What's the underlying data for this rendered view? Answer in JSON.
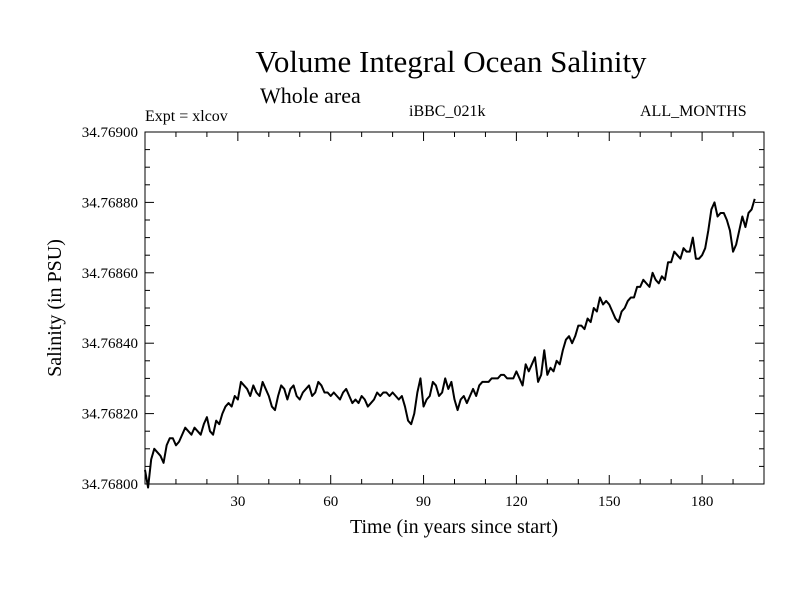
{
  "chart_data": {
    "type": "line",
    "title": "Volume Integral Ocean Salinity",
    "subtitle": "Whole area",
    "experiment": "Expt = xlcov",
    "run_id": "iBBC_021k",
    "period": "ALL_MONTHS",
    "xlabel": "Time (in years since start)",
    "ylabel": "Salinity (in PSU)",
    "xlim": [
      0,
      200
    ],
    "ylim": [
      34.768,
      34.769
    ],
    "x_ticks": [
      30,
      60,
      90,
      120,
      150,
      180
    ],
    "x_tick_labels": [
      "30",
      "60",
      "90",
      "120",
      "150",
      "180"
    ],
    "y_ticks": [
      34.768,
      34.7682,
      34.7684,
      34.7686,
      34.7688,
      34.769
    ],
    "y_tick_labels": [
      "34.76800",
      "34.76820",
      "34.76840",
      "34.76860",
      "34.76880",
      "34.76900"
    ],
    "grid": false,
    "series": [
      {
        "name": "salinity",
        "x_start": 0,
        "x_step": 1,
        "values": [
          34.76804,
          34.76799,
          34.76807,
          34.7681,
          34.76809,
          34.76808,
          34.76806,
          34.76811,
          34.76813,
          34.76813,
          34.76811,
          34.76812,
          34.76814,
          34.76816,
          34.76815,
          34.76814,
          34.76816,
          34.76815,
          34.76814,
          34.76817,
          34.76819,
          34.76815,
          34.76814,
          34.76818,
          34.76817,
          34.7682,
          34.76822,
          34.76823,
          34.76822,
          34.76825,
          34.76824,
          34.76829,
          34.76828,
          34.76827,
          34.76825,
          34.76828,
          34.76826,
          34.76825,
          34.76829,
          34.76827,
          34.76825,
          34.76822,
          34.76821,
          34.76825,
          34.76828,
          34.76827,
          34.76824,
          34.76827,
          34.76828,
          34.76825,
          34.76824,
          34.76826,
          34.76827,
          34.76828,
          34.76825,
          34.76826,
          34.76829,
          34.76828,
          34.76826,
          34.76826,
          34.76825,
          34.76826,
          34.76825,
          34.76824,
          34.76826,
          34.76827,
          34.76825,
          34.76823,
          34.76824,
          34.76823,
          34.76825,
          34.76824,
          34.76822,
          34.76823,
          34.76824,
          34.76826,
          34.76825,
          34.76826,
          34.76826,
          34.76825,
          34.76826,
          34.76825,
          34.76824,
          34.76825,
          34.76822,
          34.76818,
          34.76817,
          34.7682,
          34.76826,
          34.7683,
          34.76822,
          34.76824,
          34.76825,
          34.76829,
          34.76828,
          34.76825,
          34.76826,
          34.7683,
          34.76827,
          34.76829,
          34.76824,
          34.76821,
          34.76824,
          34.76825,
          34.76823,
          34.76825,
          34.76827,
          34.76825,
          34.76828,
          34.76829,
          34.76829,
          34.76829,
          34.7683,
          34.7683,
          34.7683,
          34.76831,
          34.76831,
          34.7683,
          34.7683,
          34.7683,
          34.76832,
          34.7683,
          34.76828,
          34.76834,
          34.76832,
          34.76834,
          34.76836,
          34.76829,
          34.76831,
          34.76838,
          34.76831,
          34.76833,
          34.76832,
          34.76835,
          34.76834,
          34.76838,
          34.76841,
          34.76842,
          34.7684,
          34.76842,
          34.76845,
          34.76845,
          34.76844,
          34.76847,
          34.76846,
          34.7685,
          34.76849,
          34.76853,
          34.76851,
          34.76852,
          34.76851,
          34.76849,
          34.76847,
          34.76846,
          34.76849,
          34.7685,
          34.76852,
          34.76853,
          34.76853,
          34.76856,
          34.76856,
          34.76858,
          34.76857,
          34.76856,
          34.7686,
          34.76858,
          34.76857,
          34.76859,
          34.76858,
          34.76863,
          34.76863,
          34.76866,
          34.76865,
          34.76864,
          34.76867,
          34.76866,
          34.76866,
          34.7687,
          34.76864,
          34.76864,
          34.76865,
          34.76867,
          34.76872,
          34.76878,
          34.7688,
          34.76876,
          34.76877,
          34.76877,
          34.76875,
          34.76872,
          34.76866,
          34.76868,
          34.76872,
          34.76876,
          34.76873,
          34.76877,
          34.76878,
          34.76881
        ]
      }
    ]
  }
}
